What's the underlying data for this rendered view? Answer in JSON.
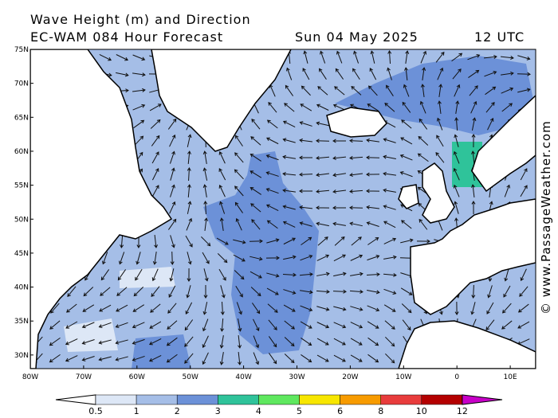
{
  "header": {
    "title": "Wave Height (m) and Direction",
    "model": "EC-WAM 084 Hour Forecast",
    "date": "Sun 04 May 2025",
    "time": "12 UTC"
  },
  "map": {
    "lat_labels": [
      "75N",
      "70N",
      "65N",
      "60N",
      "55N",
      "50N",
      "45N",
      "40N",
      "35N",
      "30N"
    ],
    "lon_labels": [
      "80W",
      "70W",
      "60W",
      "50W",
      "40W",
      "30W",
      "20W",
      "10W",
      "0",
      "10E"
    ],
    "watermark": "© www.PassageWeather.com"
  },
  "colorbar": {
    "labels": [
      0.5,
      1,
      2,
      3,
      4,
      5,
      6,
      8,
      10,
      12
    ],
    "colors": [
      "#dde7f6",
      "#a5bee7",
      "#6c91d8",
      "#2fc39a",
      "#5fe85f",
      "#f7e600",
      "#f79b00",
      "#e83c3c",
      "#b40000"
    ],
    "low_color": "#ffffff",
    "high_color": "#c800c8"
  }
}
